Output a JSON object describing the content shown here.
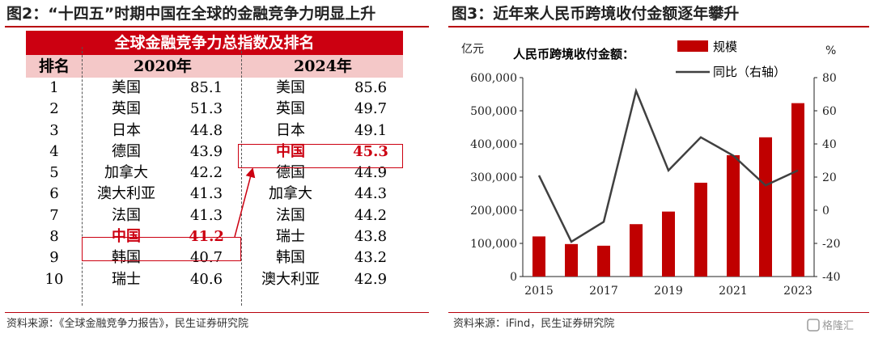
{
  "left_panel": {
    "title": "图2：“十四五”时期中国在全球的金融竞争力明显上升",
    "table_title": "全球金融竞争力总指数及排名",
    "col_rank": "排名",
    "col_2020": "2020年",
    "col_2024": "2024年",
    "rows": [
      {
        "rank": "1",
        "n2020": "美国",
        "v2020": "85.1",
        "n2024": "美国",
        "v2024": "85.6"
      },
      {
        "rank": "2",
        "n2020": "英国",
        "v2020": "51.3",
        "n2024": "英国",
        "v2024": "49.7"
      },
      {
        "rank": "3",
        "n2020": "日本",
        "v2020": "44.8",
        "n2024": "日本",
        "v2024": "49.1"
      },
      {
        "rank": "4",
        "n2020": "德国",
        "v2020": "43.9",
        "n2024": "中国",
        "v2024": "45.3"
      },
      {
        "rank": "5",
        "n2020": "加拿大",
        "v2020": "42.2",
        "n2024": "德国",
        "v2024": "44.9"
      },
      {
        "rank": "6",
        "n2020": "澳大利亚",
        "v2020": "41.3",
        "n2024": "加拿大",
        "v2024": "44.3"
      },
      {
        "rank": "7",
        "n2020": "法国",
        "v2020": "41.3",
        "n2024": "法国",
        "v2024": "44.2"
      },
      {
        "rank": "8",
        "n2020": "中国",
        "v2020": "41.2",
        "n2024": "瑞士",
        "v2024": "43.8"
      },
      {
        "rank": "9",
        "n2020": "韩国",
        "v2020": "40.7",
        "n2024": "韩国",
        "v2024": "43.2"
      },
      {
        "rank": "10",
        "n2020": "瑞士",
        "v2020": "40.6",
        "n2024": "澳大利亚",
        "v2024": "42.9"
      }
    ],
    "highlight_name": "中国",
    "source": "资料来源：《全球金融竞争力报告》，民生证券研究院"
  },
  "right_panel": {
    "title": "图3：近年来人民币跨境收付金额逐年攀升",
    "source": "资料来源：iFind，民生证券研究院"
  },
  "chart_data": {
    "type": "bar",
    "title": "人民币跨境收付金额：",
    "x": [
      2015,
      2016,
      2017,
      2018,
      2019,
      2020,
      2021,
      2022,
      2023
    ],
    "x_tick_labels": [
      "2015",
      "2017",
      "2019",
      "2021",
      "2023"
    ],
    "y_left_unit": "亿元",
    "y_right_unit": "%",
    "y_left_range": [
      0,
      600000
    ],
    "y_left_ticks": [
      "0",
      "100,000",
      "200,000",
      "300,000",
      "400,000",
      "500,000",
      "600,000"
    ],
    "y_right_range": [
      -40,
      80
    ],
    "y_right_ticks": [
      "-40",
      "-20",
      "0",
      "20",
      "40",
      "60",
      "80"
    ],
    "series": [
      {
        "name": "规模",
        "type": "bar",
        "axis": "left",
        "color": "#c00000",
        "values": [
          121000,
          98000,
          93000,
          158000,
          196000,
          283000,
          366000,
          420000,
          523000
        ]
      },
      {
        "name": "同比（右轴）",
        "type": "line",
        "axis": "right",
        "color": "#404040",
        "values": [
          21,
          -19,
          -7,
          72,
          24,
          44,
          33,
          15,
          24
        ]
      }
    ],
    "legend_position": "top-right",
    "grid": false
  },
  "watermark": "格隆汇"
}
